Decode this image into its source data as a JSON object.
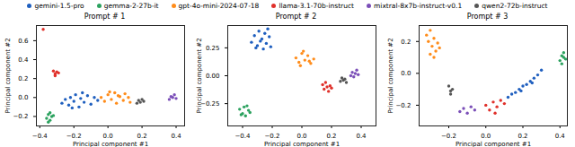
{
  "chart_data": [
    {
      "type": "scatter",
      "title": "Prompt # 1",
      "x_label": "Principal component #1",
      "y_label": "Principal component #2",
      "legend": "top",
      "xlim": [
        -0.42,
        0.45
      ],
      "ylim": [
        -0.3,
        0.76
      ],
      "xticks": [
        {
          "value": -0.4,
          "label": "−0.4"
        },
        {
          "value": -0.2,
          "label": "−0.2"
        },
        {
          "value": 0,
          "label": "0.0"
        },
        0.2,
        0.4
      ],
      "yticks": [
        {
          "value": -0.2,
          "label": "−0.2"
        },
        {
          "value": 0,
          "label": "0.0"
        },
        0.2,
        0.4,
        0.6
      ],
      "series": [
        {
          "name": "gemini-1.5-pro",
          "color": "#1f5fbf",
          "x": [
            -0.27,
            -0.25,
            -0.23,
            -0.22,
            -0.2,
            -0.19,
            -0.17,
            -0.16,
            -0.14,
            -0.12,
            -0.1,
            -0.08,
            -0.06,
            -0.21,
            -0.15
          ],
          "y": [
            -0.06,
            -0.02,
            -0.08,
            0.0,
            -0.04,
            0.03,
            -0.1,
            -0.01,
            -0.05,
            0.02,
            -0.07,
            0.0,
            -0.03,
            -0.11,
            0.05
          ]
        },
        {
          "name": "gemma-2-27b-it",
          "color": "#2ca25f",
          "x": [
            -0.36,
            -0.35,
            -0.34,
            -0.33,
            -0.35,
            -0.32,
            -0.34
          ],
          "y": [
            -0.22,
            -0.18,
            -0.24,
            -0.2,
            -0.26,
            -0.19,
            -0.16
          ]
        },
        {
          "name": "gpt-4o-mini-2024-07-18",
          "color": "#ff8c1a",
          "x": [
            -0.04,
            -0.02,
            0.0,
            0.02,
            0.04,
            0.05,
            0.07,
            0.09,
            0.1,
            0.12,
            0.01,
            0.06,
            0.13
          ],
          "y": [
            0.0,
            -0.04,
            0.03,
            -0.02,
            0.05,
            -0.06,
            0.01,
            -0.03,
            0.04,
            0.0,
            0.06,
            0.02,
            -0.05
          ]
        },
        {
          "name": "llama-3.1-70b-instruct",
          "color": "#e0302a",
          "x": [
            -0.38,
            -0.32,
            -0.31,
            -0.3,
            -0.31,
            -0.29
          ],
          "y": [
            0.72,
            0.28,
            0.25,
            0.27,
            0.23,
            0.26
          ]
        },
        {
          "name": "mixtral-8x7b-instruct-v0.1",
          "color": "#7b4fb8",
          "x": [
            0.36,
            0.37,
            0.38,
            0.39,
            0.4
          ],
          "y": [
            -0.02,
            0.01,
            0.0,
            0.03,
            -0.01
          ]
        },
        {
          "name": "qwen2-72b-instruct",
          "color": "#555555",
          "x": [
            0.17,
            0.18,
            0.19,
            0.2,
            0.21
          ],
          "y": [
            -0.06,
            -0.03,
            -0.05,
            -0.02,
            -0.04
          ]
        }
      ]
    },
    {
      "type": "scatter",
      "title": "Prompt # 2",
      "x_label": "Principal component #1",
      "y_label": "Principal component #2",
      "xlim": [
        -0.5,
        0.5
      ],
      "ylim": [
        -0.45,
        0.45
      ],
      "xticks": [
        {
          "value": -0.4,
          "label": "−0.4"
        },
        {
          "value": -0.2,
          "label": "−0.2"
        },
        {
          "value": 0,
          "label": "0.0"
        },
        0.2,
        0.4
      ],
      "yticks": [
        {
          "value": -0.25,
          "label": "−0.25"
        },
        {
          "value": 0,
          "label": "0.00"
        },
        0.25
      ],
      "series": [
        {
          "name": "gemini-1.5-pro",
          "color": "#1f5fbf",
          "x": [
            -0.34,
            -0.32,
            -0.3,
            -0.29,
            -0.27,
            -0.26,
            -0.25,
            -0.24,
            -0.22,
            -0.21,
            -0.28,
            -0.23,
            -0.31
          ],
          "y": [
            0.3,
            0.36,
            0.27,
            0.4,
            0.33,
            0.24,
            0.38,
            0.29,
            0.35,
            0.26,
            0.31,
            0.42,
            0.25
          ]
        },
        {
          "name": "gemma-2-27b-it",
          "color": "#2ca25f",
          "x": [
            -0.42,
            -0.4,
            -0.39,
            -0.38,
            -0.36,
            -0.35,
            -0.37,
            -0.41
          ],
          "y": [
            -0.3,
            -0.34,
            -0.28,
            -0.36,
            -0.31,
            -0.33,
            -0.27,
            -0.35
          ]
        },
        {
          "name": "gpt-4o-mini-2024-07-18",
          "color": "#ff8c1a",
          "x": [
            -0.04,
            -0.02,
            0.0,
            0.02,
            0.04,
            0.06,
            0.08,
            0.01,
            0.05,
            -0.01
          ],
          "y": [
            0.16,
            0.12,
            0.2,
            0.14,
            0.18,
            0.11,
            0.15,
            0.22,
            0.13,
            0.09
          ]
        },
        {
          "name": "llama-3.1-70b-instruct",
          "color": "#e0302a",
          "x": [
            0.14,
            0.15,
            0.16,
            0.17,
            0.18,
            0.19,
            0.2
          ],
          "y": [
            -0.08,
            -0.12,
            -0.06,
            -0.1,
            -0.14,
            -0.09,
            -0.11
          ]
        },
        {
          "name": "mixtral-8x7b-instruct-v0.1",
          "color": "#7b4fb8",
          "x": [
            0.33,
            0.34,
            0.35,
            0.36,
            0.37,
            0.38
          ],
          "y": [
            0.0,
            0.03,
            -0.01,
            0.02,
            0.05,
            0.01
          ]
        },
        {
          "name": "qwen2-72b-instruct",
          "color": "#555555",
          "x": [
            0.26,
            0.27,
            0.28,
            0.29,
            0.3
          ],
          "y": [
            -0.05,
            -0.02,
            -0.04,
            -0.03,
            -0.06
          ]
        }
      ]
    },
    {
      "type": "scatter",
      "title": "Prompt # 3",
      "x_label": "Principal component #1",
      "y_label": "Principal component #2",
      "xlim": [
        -0.36,
        0.44
      ],
      "ylim": [
        -0.33,
        0.3
      ],
      "xticks": [
        {
          "value": -0.2,
          "label": "−0.2"
        },
        {
          "value": 0,
          "label": "0.0"
        },
        0.2,
        0.4
      ],
      "yticks": [
        {
          "value": -0.2,
          "label": "−0.2"
        },
        {
          "value": 0,
          "label": "0.0"
        },
        0.2
      ],
      "series": [
        {
          "name": "gemini-1.5-pro",
          "color": "#1f5fbf",
          "x": [
            0.12,
            0.14,
            0.16,
            0.18,
            0.2,
            0.22,
            0.24,
            0.26,
            0.28,
            0.3,
            0.19,
            0.25
          ],
          "y": [
            -0.15,
            -0.13,
            -0.12,
            -0.1,
            -0.08,
            -0.07,
            -0.05,
            -0.03,
            -0.01,
            0.02,
            -0.11,
            -0.06
          ]
        },
        {
          "name": "gemma-2-27b-it",
          "color": "#2ca25f",
          "x": [
            0.4,
            0.41,
            0.41,
            0.42,
            0.42,
            0.43
          ],
          "y": [
            0.08,
            0.11,
            0.06,
            0.1,
            0.13,
            0.09
          ]
        },
        {
          "name": "gpt-4o-mini-2024-07-18",
          "color": "#ff8c1a",
          "x": [
            -0.32,
            -0.31,
            -0.3,
            -0.29,
            -0.28,
            -0.27,
            -0.26,
            -0.3,
            -0.28,
            -0.25
          ],
          "y": [
            0.24,
            0.2,
            0.27,
            0.17,
            0.22,
            0.14,
            0.19,
            0.12,
            0.1,
            0.16
          ]
        },
        {
          "name": "llama-3.1-70b-instruct",
          "color": "#e0302a",
          "x": [
            0.0,
            0.02,
            0.04,
            0.06,
            0.08,
            0.1,
            0.05
          ],
          "y": [
            -0.2,
            -0.23,
            -0.18,
            -0.21,
            -0.17,
            -0.19,
            -0.25
          ]
        },
        {
          "name": "mixtral-8x7b-instruct-v0.1",
          "color": "#7b4fb8",
          "x": [
            -0.14,
            -0.12,
            -0.1,
            -0.08,
            -0.06
          ],
          "y": [
            -0.24,
            -0.22,
            -0.25,
            -0.21,
            -0.23
          ]
        },
        {
          "name": "qwen2-72b-instruct",
          "color": "#555555",
          "x": [
            -0.2,
            -0.19,
            -0.18,
            -0.19
          ],
          "y": [
            -0.08,
            -0.11,
            -0.1,
            -0.13
          ]
        }
      ]
    }
  ]
}
